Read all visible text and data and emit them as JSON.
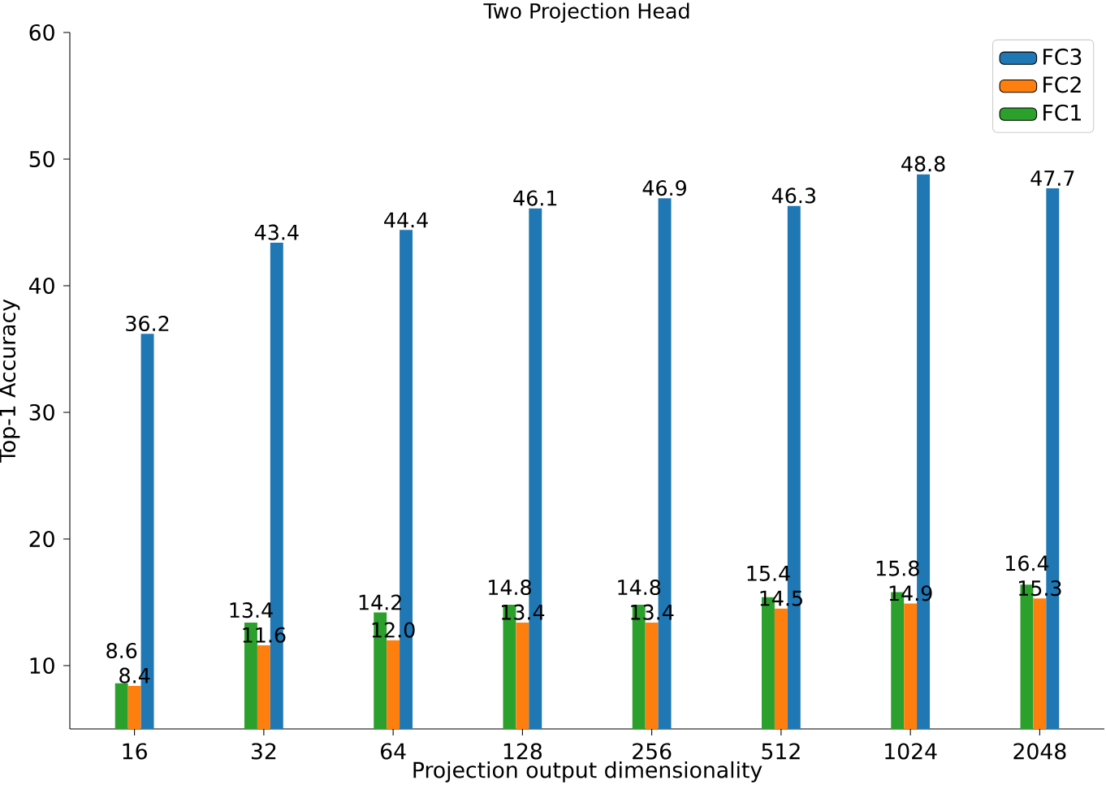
{
  "chart_data": {
    "type": "bar",
    "title": "Two Projection Head",
    "xlabel": "Projection output dimensionality",
    "ylabel": "Top-1 Accuracy",
    "categories": [
      "16",
      "32",
      "64",
      "128",
      "256",
      "512",
      "1024",
      "2048"
    ],
    "series": [
      {
        "name": "FC1",
        "color": "#2ca02c",
        "values": [
          8.6,
          13.4,
          14.2,
          14.8,
          14.8,
          15.4,
          15.8,
          16.4
        ],
        "value_labels": [
          "8.6",
          "13.4",
          "14.2",
          "14.8",
          "14.8",
          "15.4",
          "15.8",
          "16.4"
        ]
      },
      {
        "name": "FC2",
        "color": "#ff7f0e",
        "values": [
          8.4,
          11.6,
          12.0,
          13.4,
          13.4,
          14.5,
          14.9,
          15.3
        ],
        "value_labels": [
          "8.4",
          "11.6",
          "12.0",
          "13.4",
          "13.4",
          "14.5",
          "14.9",
          "15.3"
        ]
      },
      {
        "name": "FC3",
        "color": "#1f77b4",
        "values": [
          36.2,
          43.4,
          44.4,
          46.1,
          46.9,
          46.3,
          48.8,
          47.7
        ],
        "value_labels": [
          "36.2",
          "43.4",
          "44.4",
          "46.1",
          "46.9",
          "46.3",
          "48.8",
          "47.7"
        ]
      }
    ],
    "ylim": [
      5,
      60
    ],
    "yticks": [
      10,
      20,
      30,
      40,
      50,
      60
    ],
    "legend": "top right",
    "grid": false
  }
}
